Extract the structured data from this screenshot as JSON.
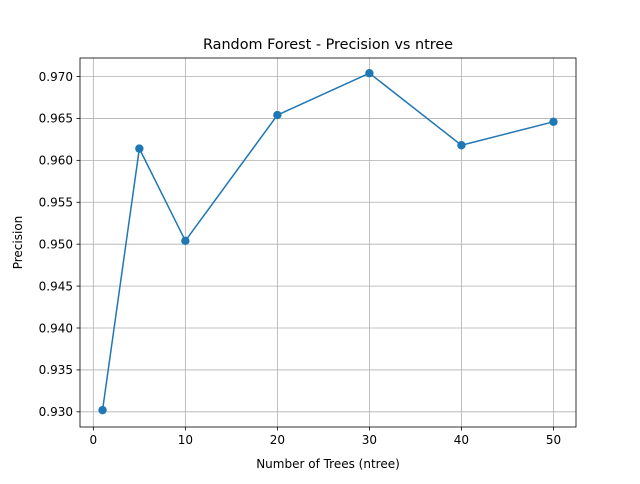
{
  "chart_data": {
    "type": "line",
    "title": "Random Forest - Precision vs ntree",
    "xlabel": "Number of Trees (ntree)",
    "ylabel": "Precision",
    "x": [
      1,
      5,
      10,
      20,
      30,
      40,
      50
    ],
    "series": [
      {
        "values": [
          0.9302,
          0.9614,
          0.9504,
          0.9654,
          0.9704,
          0.9618,
          0.9646
        ],
        "color": "#1f77b4",
        "marker": "circle"
      }
    ],
    "xlim": [
      -1.45,
      52.45
    ],
    "ylim": [
      0.92819,
      0.97221
    ],
    "xticks": [
      0,
      10,
      20,
      30,
      40,
      50
    ],
    "xtick_labels": [
      "0",
      "10",
      "20",
      "30",
      "40",
      "50"
    ],
    "yticks": [
      0.93,
      0.935,
      0.94,
      0.945,
      0.95,
      0.955,
      0.96,
      0.965,
      0.97
    ],
    "ytick_labels": [
      "0.930",
      "0.935",
      "0.940",
      "0.945",
      "0.950",
      "0.955",
      "0.960",
      "0.965",
      "0.970"
    ],
    "grid": true,
    "grid_color": "#b0b0b0",
    "legend": false
  }
}
